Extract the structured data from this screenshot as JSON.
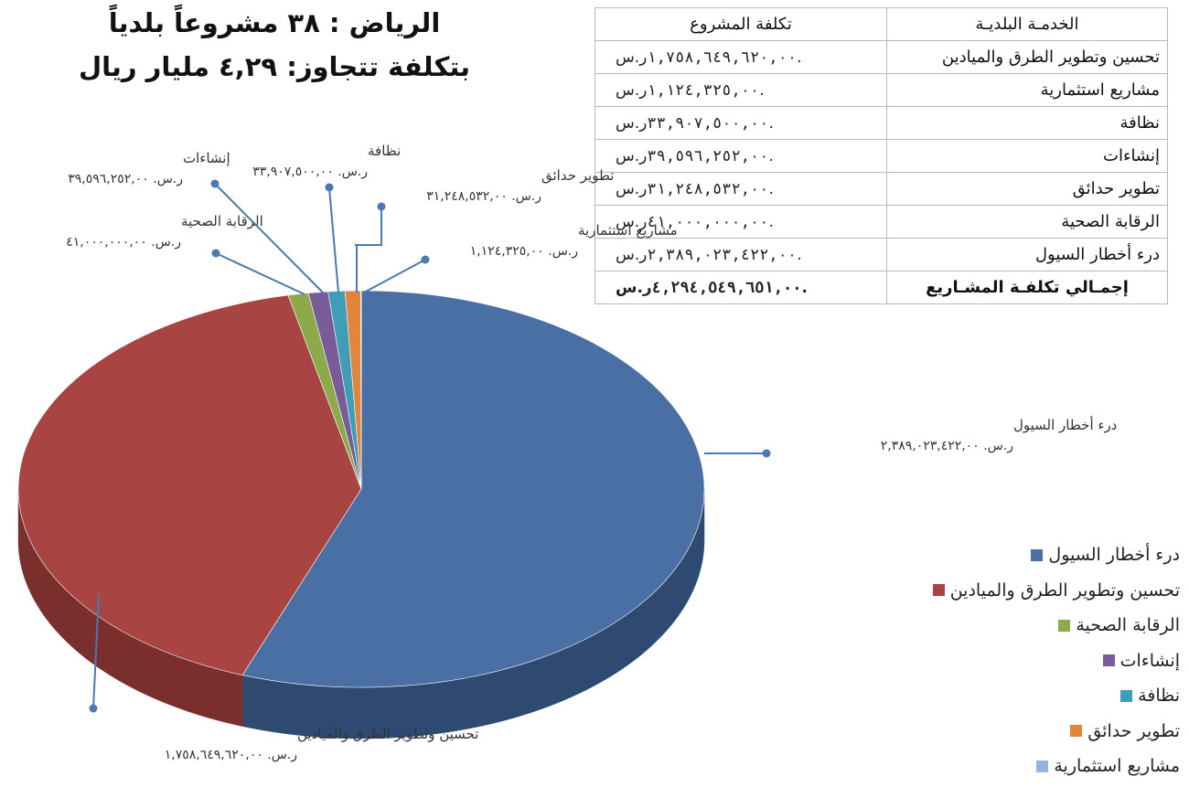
{
  "heading": {
    "line1": "الرياض : ٣٨ مشروعاً بلدياً",
    "line2": "بتكلفة تتجاوز: ٤,٢٩ مليار ريال"
  },
  "table": {
    "headers": [
      "الخدمـة البلديـة",
      "تكلفة المشروع"
    ],
    "currency": "ر.س.",
    "rows": [
      {
        "service": "تحسين وتطوير الطرق والميادين",
        "amount": "١,٧٥٨,٦٤٩,٦٢٠,٠٠"
      },
      {
        "service": "مشاريع استثمارية",
        "amount": "١,١٢٤,٣٢٥,٠٠"
      },
      {
        "service": "نظافة",
        "amount": "٣٣,٩٠٧,٥٠٠,٠٠"
      },
      {
        "service": "إنشاءات",
        "amount": "٣٩,٥٩٦,٢٥٢,٠٠"
      },
      {
        "service": "تطوير حدائق",
        "amount": "٣١,٢٤٨,٥٣٢,٠٠"
      },
      {
        "service": "الرقابة الصحية",
        "amount": "٤١,٠٠٠,٠٠٠,٠٠"
      },
      {
        "service": "درء أخطار السيول",
        "amount": "٢,٣٨٩,٠٢٣,٤٢٢,٠٠"
      }
    ],
    "total": {
      "label": "إجمـالي تكلفـة المشـاريع",
      "amount": "٤,٢٩٤,٥٤٩,٦٥١,٠٠"
    }
  },
  "chart_data": {
    "type": "pie",
    "currency": "ر.س.",
    "slices": [
      {
        "name": "درء أخطار السيول",
        "value": 2389023422,
        "label": "٢,٣٨٩,٠٢٣,٤٢٢,٠٠",
        "color": "#4a6fa5",
        "side": "#2f4a70"
      },
      {
        "name": "تحسين وتطوير الطرق والميادين",
        "value": 1758649620,
        "label": "١,٧٥٨,٦٤٩,٦٢٠,٠٠",
        "color": "#a84543",
        "side": "#7a2f2d"
      },
      {
        "name": "الرقابة الصحية",
        "value": 41000000,
        "label": "٤١,٠٠٠,٠٠٠,٠٠",
        "color": "#8caa4b",
        "side": "#6a8237"
      },
      {
        "name": "إنشاءات",
        "value": 39596252,
        "label": "٣٩,٥٩٦,٢٥٢,٠٠",
        "color": "#7a5b9a",
        "side": "#5a4273"
      },
      {
        "name": "نظافة",
        "value": 33907500,
        "label": "٣٣,٩٠٧,٥٠٠,٠٠",
        "color": "#3f9db5",
        "side": "#2d7588"
      },
      {
        "name": "تطوير حدائق",
        "value": 31248532,
        "label": "٣١,٢٤٨,٥٣٢,٠٠",
        "color": "#e0853a",
        "side": "#a8632b"
      },
      {
        "name": "مشاريع استثمارية",
        "value": 1124325,
        "label": "١,١٢٤,٣٢٥,٠٠",
        "color": "#98b4d8",
        "side": "#6f88aa"
      }
    ],
    "legend_position": "right"
  }
}
